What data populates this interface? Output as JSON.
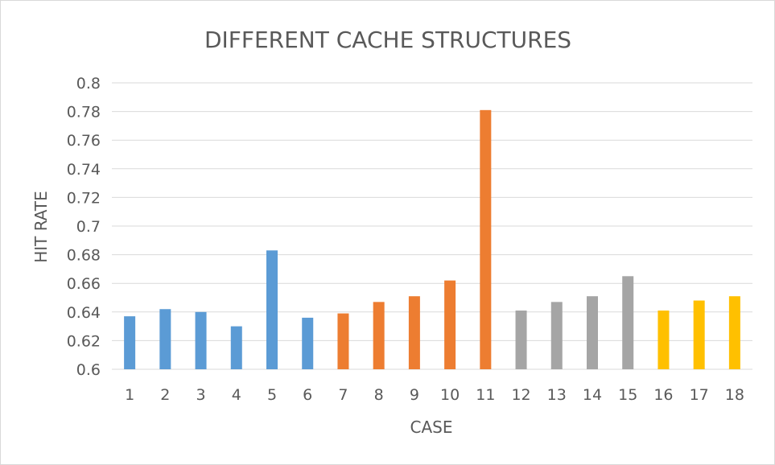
{
  "chart_data": {
    "type": "bar",
    "title": "DIFFERENT CACHE STRUCTURES",
    "xlabel": "CASE",
    "ylabel": "HIT RATE",
    "ylim": [
      0.6,
      0.8
    ],
    "ytick_step": 0.02,
    "yticks": [
      "0.6",
      "0.62",
      "0.64",
      "0.66",
      "0.68",
      "0.7",
      "0.72",
      "0.74",
      "0.76",
      "0.78",
      "0.8"
    ],
    "grid": true,
    "legend": "none",
    "categories": [
      "1",
      "2",
      "3",
      "4",
      "5",
      "6",
      "7",
      "8",
      "9",
      "10",
      "11",
      "12",
      "13",
      "14",
      "15",
      "16",
      "17",
      "18"
    ],
    "values": [
      0.637,
      0.642,
      0.64,
      0.63,
      0.683,
      0.636,
      0.639,
      0.647,
      0.651,
      0.662,
      0.781,
      0.641,
      0.647,
      0.651,
      0.665,
      0.641,
      0.648,
      0.651
    ],
    "bar_colors": [
      "#5b9bd5",
      "#5b9bd5",
      "#5b9bd5",
      "#5b9bd5",
      "#5b9bd5",
      "#5b9bd5",
      "#ed7d31",
      "#ed7d31",
      "#ed7d31",
      "#ed7d31",
      "#ed7d31",
      "#a5a5a5",
      "#a5a5a5",
      "#a5a5a5",
      "#a5a5a5",
      "#ffc000",
      "#ffc000",
      "#ffc000"
    ]
  },
  "colors": {
    "grid": "#d9d9d9",
    "text": "#595959"
  }
}
